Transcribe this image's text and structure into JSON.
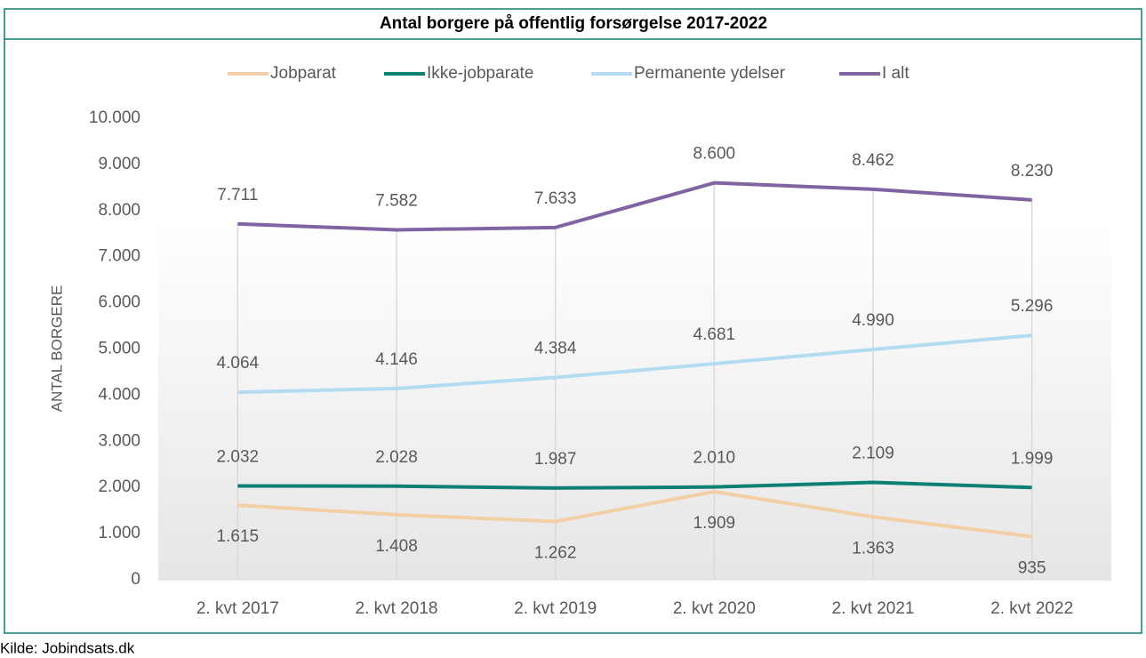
{
  "chart_data": {
    "type": "line",
    "title": "Antal borgere på offentlig forsørgelse 2017-2022",
    "y_label": "ANTAL BORGERE",
    "source": "Kilde: Jobindsats.dk",
    "categories": [
      "2. kvt 2017",
      "2. kvt 2018",
      "2. kvt 2019",
      "2. kvt 2020",
      "2. kvt 2021",
      "2. kvt 2022"
    ],
    "series": [
      {
        "name": "Jobparat",
        "color": "#f3cfa5",
        "values": [
          1615,
          1408,
          1262,
          1909,
          1363,
          935
        ],
        "value_labels": [
          "1.615",
          "1.408",
          "1.262",
          "1.909",
          "1.363",
          "935"
        ],
        "label_position": "below"
      },
      {
        "name": "Ikke-jobparate",
        "color": "#0e7f74",
        "values": [
          2032,
          2028,
          1987,
          2010,
          2109,
          1999
        ],
        "value_labels": [
          "2.032",
          "2.028",
          "1.987",
          "2.010",
          "2.109",
          "1.999"
        ],
        "label_position": "above"
      },
      {
        "name": "Permanente ydelser",
        "color": "#b3dcf3",
        "values": [
          4064,
          4146,
          4384,
          4681,
          4990,
          5296
        ],
        "value_labels": [
          "4.064",
          "4.146",
          "4.384",
          "4.681",
          "4.990",
          "5.296"
        ],
        "label_position": "above"
      },
      {
        "name": "I alt",
        "color": "#8064a2",
        "values": [
          7711,
          7582,
          7633,
          8600,
          8462,
          8230
        ],
        "value_labels": [
          "7.711",
          "7.582",
          "7.633",
          "8.600",
          "8.462",
          "8.230"
        ],
        "label_position": "above"
      }
    ],
    "ylim": [
      0,
      10000
    ],
    "yticks": [
      0,
      {
        "value": 1000,
        "label": "1.000"
      },
      {
        "value": 2000,
        "label": "2.000"
      },
      {
        "value": 3000,
        "label": "3.000"
      },
      {
        "value": 4000,
        "label": "4.000"
      },
      {
        "value": 5000,
        "label": "5.000"
      },
      {
        "value": 6000,
        "label": "6.000"
      },
      {
        "value": 7000,
        "label": "7.000"
      },
      {
        "value": 8000,
        "label": "8.000"
      },
      {
        "value": 9000,
        "label": "9.000"
      },
      {
        "value": 10000,
        "label": "10.000"
      }
    ],
    "legend": "top",
    "drop_lines": true
  }
}
